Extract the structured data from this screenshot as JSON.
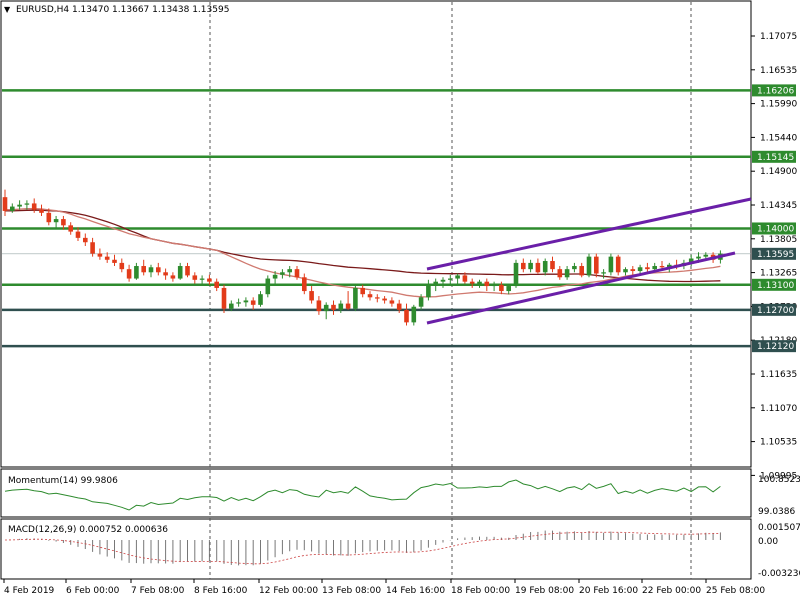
{
  "header": {
    "dropdown_glyph": "▼",
    "symbol_line": "EURUSD,H4  1.13470 1.13667 1.13438 1.13595"
  },
  "colors": {
    "bull": "#2e8b2e",
    "bear": "#e23b1a",
    "level_green": "#2e8b2e",
    "level_dark": "#2f4f4f",
    "channel": "#6a1fa8",
    "ma_slow": "#7a1a1a",
    "ma_fast": "#d07a70",
    "grid_dash": "#555555",
    "momentum": "#2e8b2e",
    "macd_hist": "#777777",
    "macd_signal": "#cc4444",
    "current_price_bg": "#2f4f4f"
  },
  "price_axis": {
    "ticks": [
      "1.17075",
      "1.16535",
      "1.15990",
      "1.15440",
      "1.14900",
      "1.14345",
      "1.13805",
      "1.13265",
      "1.12720",
      "1.12180",
      "1.11635",
      "1.11070",
      "1.10535",
      "1.09995"
    ]
  },
  "levels": [
    {
      "label": "1.16206",
      "value": 1.16206,
      "style": "green"
    },
    {
      "label": "1.15145",
      "value": 1.15145,
      "style": "green"
    },
    {
      "label": "1.14000",
      "value": 1.14,
      "style": "green"
    },
    {
      "label": "1.13100",
      "value": 1.131,
      "style": "green"
    },
    {
      "label": "1.12700",
      "value": 1.127,
      "style": "dark"
    },
    {
      "label": "1.12120",
      "value": 1.1212,
      "style": "dark"
    }
  ],
  "current_price": {
    "label": "1.13595",
    "value": 1.13595
  },
  "momentum": {
    "title": "Momentum(14) 99.9806",
    "scale_top": "100.8523",
    "scale_bottom": "99.0386"
  },
  "macd": {
    "title": "MACD(12,26,9) 0.000752 0.000636",
    "scale_top": "0.001507",
    "scale_mid": "0.00",
    "scale_bottom": "-0.003236"
  },
  "time_axis": {
    "labels": [
      "4 Feb 2019",
      "6 Feb 00:00",
      "7 Feb 08:00",
      "8 Feb 16:00",
      "12 Feb 00:00",
      "13 Feb 08:00",
      "14 Feb 16:00",
      "18 Feb 00:00",
      "19 Feb 08:00",
      "20 Feb 16:00",
      "22 Feb 00:00",
      "25 Feb 08:00"
    ]
  },
  "candles": [
    {
      "o": 1.145,
      "h": 1.1462,
      "l": 1.142,
      "c": 1.1428
    },
    {
      "o": 1.1428,
      "h": 1.144,
      "l": 1.1425,
      "c": 1.1435
    },
    {
      "o": 1.1435,
      "h": 1.1445,
      "l": 1.143,
      "c": 1.1438
    },
    {
      "o": 1.1438,
      "h": 1.1445,
      "l": 1.143,
      "c": 1.144
    },
    {
      "o": 1.144,
      "h": 1.1448,
      "l": 1.1425,
      "c": 1.143
    },
    {
      "o": 1.143,
      "h": 1.1438,
      "l": 1.142,
      "c": 1.1425
    },
    {
      "o": 1.1425,
      "h": 1.1432,
      "l": 1.1405,
      "c": 1.141
    },
    {
      "o": 1.141,
      "h": 1.142,
      "l": 1.14,
      "c": 1.1415
    },
    {
      "o": 1.1415,
      "h": 1.142,
      "l": 1.1398,
      "c": 1.1405
    },
    {
      "o": 1.1405,
      "h": 1.141,
      "l": 1.139,
      "c": 1.1395
    },
    {
      "o": 1.1395,
      "h": 1.1402,
      "l": 1.138,
      "c": 1.1385
    },
    {
      "o": 1.1385,
      "h": 1.1392,
      "l": 1.1372,
      "c": 1.1378
    },
    {
      "o": 1.1378,
      "h": 1.1385,
      "l": 1.1355,
      "c": 1.136
    },
    {
      "o": 1.136,
      "h": 1.1368,
      "l": 1.135,
      "c": 1.1355
    },
    {
      "o": 1.1355,
      "h": 1.1362,
      "l": 1.1345,
      "c": 1.135
    },
    {
      "o": 1.135,
      "h": 1.1358,
      "l": 1.134,
      "c": 1.1345
    },
    {
      "o": 1.1345,
      "h": 1.1352,
      "l": 1.133,
      "c": 1.1335
    },
    {
      "o": 1.1335,
      "h": 1.1342,
      "l": 1.1315,
      "c": 1.132
    },
    {
      "o": 1.132,
      "h": 1.1345,
      "l": 1.1318,
      "c": 1.134
    },
    {
      "o": 1.134,
      "h": 1.135,
      "l": 1.1325,
      "c": 1.133
    },
    {
      "o": 1.133,
      "h": 1.1342,
      "l": 1.1322,
      "c": 1.1338
    },
    {
      "o": 1.1338,
      "h": 1.1345,
      "l": 1.1325,
      "c": 1.133
    },
    {
      "o": 1.133,
      "h": 1.1336,
      "l": 1.1318,
      "c": 1.1325
    },
    {
      "o": 1.1325,
      "h": 1.133,
      "l": 1.1315,
      "c": 1.132
    },
    {
      "o": 1.132,
      "h": 1.1345,
      "l": 1.1318,
      "c": 1.134
    },
    {
      "o": 1.134,
      "h": 1.1345,
      "l": 1.1322,
      "c": 1.1325
    },
    {
      "o": 1.1325,
      "h": 1.133,
      "l": 1.1312,
      "c": 1.1318
    },
    {
      "o": 1.1318,
      "h": 1.1325,
      "l": 1.1312,
      "c": 1.132
    },
    {
      "o": 1.132,
      "h": 1.1326,
      "l": 1.131,
      "c": 1.1315
    },
    {
      "o": 1.1315,
      "h": 1.132,
      "l": 1.13,
      "c": 1.1305
    },
    {
      "o": 1.1305,
      "h": 1.131,
      "l": 1.1265,
      "c": 1.1272
    },
    {
      "o": 1.1272,
      "h": 1.1285,
      "l": 1.1268,
      "c": 1.128
    },
    {
      "o": 1.128,
      "h": 1.1288,
      "l": 1.1275,
      "c": 1.1282
    },
    {
      "o": 1.1282,
      "h": 1.129,
      "l": 1.1275,
      "c": 1.1285
    },
    {
      "o": 1.1285,
      "h": 1.129,
      "l": 1.127,
      "c": 1.1278
    },
    {
      "o": 1.1278,
      "h": 1.13,
      "l": 1.1275,
      "c": 1.1295
    },
    {
      "o": 1.1295,
      "h": 1.1325,
      "l": 1.129,
      "c": 1.132
    },
    {
      "o": 1.132,
      "h": 1.1332,
      "l": 1.1312,
      "c": 1.1326
    },
    {
      "o": 1.1326,
      "h": 1.1335,
      "l": 1.132,
      "c": 1.133
    },
    {
      "o": 1.133,
      "h": 1.134,
      "l": 1.1322,
      "c": 1.1335
    },
    {
      "o": 1.1335,
      "h": 1.134,
      "l": 1.1318,
      "c": 1.1322
    },
    {
      "o": 1.1322,
      "h": 1.1328,
      "l": 1.1295,
      "c": 1.13
    },
    {
      "o": 1.13,
      "h": 1.1308,
      "l": 1.128,
      "c": 1.1285
    },
    {
      "o": 1.1285,
      "h": 1.1292,
      "l": 1.1262,
      "c": 1.1268
    },
    {
      "o": 1.1268,
      "h": 1.1282,
      "l": 1.1255,
      "c": 1.1278
    },
    {
      "o": 1.1278,
      "h": 1.1285,
      "l": 1.1262,
      "c": 1.127
    },
    {
      "o": 1.127,
      "h": 1.1285,
      "l": 1.1265,
      "c": 1.128
    },
    {
      "o": 1.128,
      "h": 1.13,
      "l": 1.127,
      "c": 1.1272
    },
    {
      "o": 1.1272,
      "h": 1.131,
      "l": 1.1268,
      "c": 1.1305
    },
    {
      "o": 1.1305,
      "h": 1.131,
      "l": 1.129,
      "c": 1.1295
    },
    {
      "o": 1.1295,
      "h": 1.13,
      "l": 1.1285,
      "c": 1.129
    },
    {
      "o": 1.129,
      "h": 1.1295,
      "l": 1.1282,
      "c": 1.1288
    },
    {
      "o": 1.1288,
      "h": 1.1292,
      "l": 1.128,
      "c": 1.1285
    },
    {
      "o": 1.1285,
      "h": 1.129,
      "l": 1.1275,
      "c": 1.128
    },
    {
      "o": 1.128,
      "h": 1.1286,
      "l": 1.1265,
      "c": 1.127
    },
    {
      "o": 1.127,
      "h": 1.128,
      "l": 1.1245,
      "c": 1.125
    },
    {
      "o": 1.125,
      "h": 1.1278,
      "l": 1.1245,
      "c": 1.1275
    },
    {
      "o": 1.1275,
      "h": 1.1295,
      "l": 1.127,
      "c": 1.129
    },
    {
      "o": 1.129,
      "h": 1.1318,
      "l": 1.1285,
      "c": 1.131
    },
    {
      "o": 1.131,
      "h": 1.132,
      "l": 1.13,
      "c": 1.1315
    },
    {
      "o": 1.1315,
      "h": 1.1322,
      "l": 1.1305,
      "c": 1.1318
    },
    {
      "o": 1.1318,
      "h": 1.1326,
      "l": 1.131,
      "c": 1.132
    },
    {
      "o": 1.132,
      "h": 1.1328,
      "l": 1.1312,
      "c": 1.1325
    },
    {
      "o": 1.1325,
      "h": 1.133,
      "l": 1.1312,
      "c": 1.1315
    },
    {
      "o": 1.1315,
      "h": 1.132,
      "l": 1.1305,
      "c": 1.1312
    },
    {
      "o": 1.1312,
      "h": 1.1318,
      "l": 1.1305,
      "c": 1.1315
    },
    {
      "o": 1.1315,
      "h": 1.132,
      "l": 1.13,
      "c": 1.1308
    },
    {
      "o": 1.1308,
      "h": 1.1315,
      "l": 1.13,
      "c": 1.131
    },
    {
      "o": 1.131,
      "h": 1.1315,
      "l": 1.1295,
      "c": 1.13
    },
    {
      "o": 1.13,
      "h": 1.1312,
      "l": 1.1295,
      "c": 1.1308
    },
    {
      "o": 1.1308,
      "h": 1.135,
      "l": 1.1305,
      "c": 1.1345
    },
    {
      "o": 1.1345,
      "h": 1.1352,
      "l": 1.133,
      "c": 1.1335
    },
    {
      "o": 1.1335,
      "h": 1.135,
      "l": 1.133,
      "c": 1.1345
    },
    {
      "o": 1.1345,
      "h": 1.1352,
      "l": 1.1328,
      "c": 1.133
    },
    {
      "o": 1.133,
      "h": 1.1352,
      "l": 1.1325,
      "c": 1.1348
    },
    {
      "o": 1.1348,
      "h": 1.1355,
      "l": 1.133,
      "c": 1.1335
    },
    {
      "o": 1.1335,
      "h": 1.134,
      "l": 1.1318,
      "c": 1.1322
    },
    {
      "o": 1.1322,
      "h": 1.134,
      "l": 1.1318,
      "c": 1.1335
    },
    {
      "o": 1.1335,
      "h": 1.1345,
      "l": 1.133,
      "c": 1.134
    },
    {
      "o": 1.134,
      "h": 1.1345,
      "l": 1.1322,
      "c": 1.1325
    },
    {
      "o": 1.1325,
      "h": 1.136,
      "l": 1.1322,
      "c": 1.1355
    },
    {
      "o": 1.1355,
      "h": 1.136,
      "l": 1.1322,
      "c": 1.1328
    },
    {
      "o": 1.1328,
      "h": 1.1335,
      "l": 1.132,
      "c": 1.133
    },
    {
      "o": 1.133,
      "h": 1.136,
      "l": 1.1325,
      "c": 1.1355
    },
    {
      "o": 1.1355,
      "h": 1.1358,
      "l": 1.1325,
      "c": 1.133
    },
    {
      "o": 1.133,
      "h": 1.1338,
      "l": 1.1325,
      "c": 1.1335
    },
    {
      "o": 1.1335,
      "h": 1.134,
      "l": 1.1325,
      "c": 1.1332
    },
    {
      "o": 1.1332,
      "h": 1.1342,
      "l": 1.1328,
      "c": 1.1338
    },
    {
      "o": 1.1338,
      "h": 1.1345,
      "l": 1.133,
      "c": 1.1335
    },
    {
      "o": 1.1335,
      "h": 1.1345,
      "l": 1.133,
      "c": 1.134
    },
    {
      "o": 1.134,
      "h": 1.1348,
      "l": 1.1332,
      "c": 1.1338
    },
    {
      "o": 1.1338,
      "h": 1.1345,
      "l": 1.133,
      "c": 1.1342
    },
    {
      "o": 1.1342,
      "h": 1.135,
      "l": 1.1335,
      "c": 1.134
    },
    {
      "o": 1.134,
      "h": 1.135,
      "l": 1.1335,
      "c": 1.1345
    },
    {
      "o": 1.1345,
      "h": 1.1358,
      "l": 1.134,
      "c": 1.1352
    },
    {
      "o": 1.1352,
      "h": 1.1362,
      "l": 1.1345,
      "c": 1.1355
    },
    {
      "o": 1.1355,
      "h": 1.1362,
      "l": 1.1348,
      "c": 1.1358
    },
    {
      "o": 1.1358,
      "h": 1.1362,
      "l": 1.1345,
      "c": 1.135
    },
    {
      "o": 1.135,
      "h": 1.1365,
      "l": 1.1344,
      "c": 1.136
    }
  ]
}
